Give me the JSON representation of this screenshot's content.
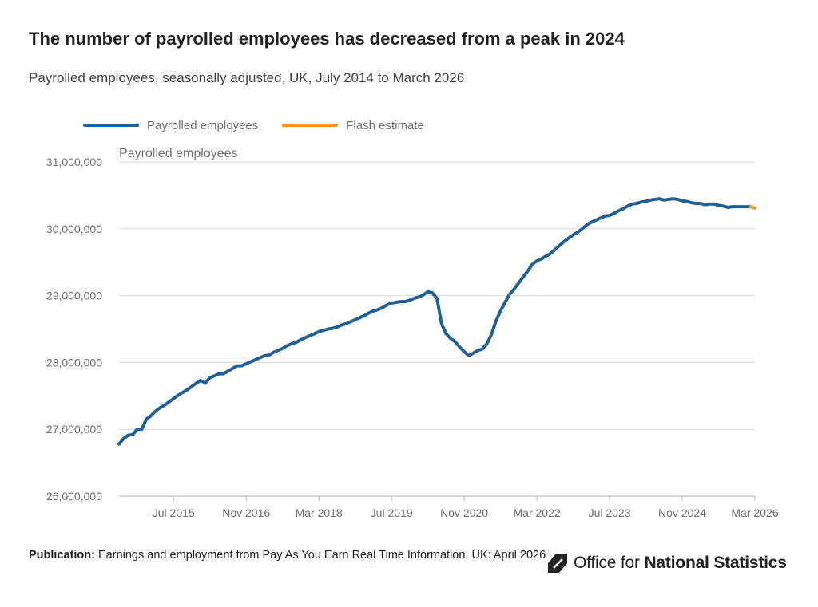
{
  "header": {
    "title": "The number of payrolled employees has decreased from a peak in 2024",
    "subtitle": "Payrolled employees, seasonally adjusted, UK, July 2014 to March 2026"
  },
  "legend": [
    {
      "label": "Payrolled employees",
      "color": "#206095"
    },
    {
      "label": "Flash estimate",
      "color": "#F39431"
    }
  ],
  "footer": {
    "publication_label": "Publication:",
    "publication_text": " Earnings and employment from Pay As You Earn Real Time Information, UK: April 2026"
  },
  "logo": {
    "text_light": "Office for ",
    "text_bold": "National Statistics"
  },
  "chart_data": {
    "type": "line",
    "ylabel": "Payrolled employees",
    "ylim": [
      26000000,
      31000000
    ],
    "yticks": [
      26000000,
      27000000,
      28000000,
      29000000,
      30000000,
      31000000
    ],
    "ytick_labels": [
      "26,000,000",
      "27,000,000",
      "28,000,000",
      "29,000,000",
      "30,000,000",
      "31,000,000"
    ],
    "x_start": "2014-07",
    "x_end": "2026-03",
    "xticks": [
      "2015-07",
      "2016-11",
      "2018-03",
      "2019-07",
      "2020-11",
      "2022-03",
      "2023-07",
      "2024-11",
      "2026-03"
    ],
    "xtick_labels": [
      "Jul 2015",
      "Nov 2016",
      "Mar 2018",
      "Jul 2019",
      "Nov 2020",
      "Mar 2022",
      "Jul 2023",
      "Nov 2024",
      "Mar 2026"
    ],
    "grid": true,
    "legend_position": "top-left",
    "series": [
      {
        "name": "Payrolled employees",
        "color": "#206095",
        "points": [
          [
            "2014-07",
            26780000
          ],
          [
            "2014-08",
            26860000
          ],
          [
            "2014-09",
            26910000
          ],
          [
            "2014-10",
            26920000
          ],
          [
            "2014-11",
            27000000
          ],
          [
            "2014-12",
            27000000
          ],
          [
            "2015-01",
            27150000
          ],
          [
            "2015-02",
            27200000
          ],
          [
            "2015-03",
            27270000
          ],
          [
            "2015-04",
            27320000
          ],
          [
            "2015-05",
            27360000
          ],
          [
            "2015-06",
            27410000
          ],
          [
            "2015-07",
            27460000
          ],
          [
            "2015-08",
            27510000
          ],
          [
            "2015-09",
            27550000
          ],
          [
            "2015-10",
            27590000
          ],
          [
            "2015-11",
            27640000
          ],
          [
            "2015-12",
            27690000
          ],
          [
            "2016-01",
            27730000
          ],
          [
            "2016-02",
            27690000
          ],
          [
            "2016-03",
            27770000
          ],
          [
            "2016-04",
            27800000
          ],
          [
            "2016-05",
            27830000
          ],
          [
            "2016-06",
            27830000
          ],
          [
            "2016-07",
            27870000
          ],
          [
            "2016-08",
            27910000
          ],
          [
            "2016-09",
            27950000
          ],
          [
            "2016-10",
            27950000
          ],
          [
            "2016-11",
            27980000
          ],
          [
            "2016-12",
            28010000
          ],
          [
            "2017-01",
            28040000
          ],
          [
            "2017-02",
            28070000
          ],
          [
            "2017-03",
            28100000
          ],
          [
            "2017-04",
            28110000
          ],
          [
            "2017-05",
            28150000
          ],
          [
            "2017-06",
            28180000
          ],
          [
            "2017-07",
            28210000
          ],
          [
            "2017-08",
            28250000
          ],
          [
            "2017-09",
            28280000
          ],
          [
            "2017-10",
            28300000
          ],
          [
            "2017-11",
            28340000
          ],
          [
            "2017-12",
            28370000
          ],
          [
            "2018-01",
            28400000
          ],
          [
            "2018-02",
            28430000
          ],
          [
            "2018-03",
            28460000
          ],
          [
            "2018-04",
            28480000
          ],
          [
            "2018-05",
            28500000
          ],
          [
            "2018-06",
            28510000
          ],
          [
            "2018-07",
            28530000
          ],
          [
            "2018-08",
            28560000
          ],
          [
            "2018-09",
            28580000
          ],
          [
            "2018-10",
            28610000
          ],
          [
            "2018-11",
            28640000
          ],
          [
            "2018-12",
            28670000
          ],
          [
            "2019-01",
            28700000
          ],
          [
            "2019-02",
            28740000
          ],
          [
            "2019-03",
            28770000
          ],
          [
            "2019-04",
            28790000
          ],
          [
            "2019-05",
            28820000
          ],
          [
            "2019-06",
            28860000
          ],
          [
            "2019-07",
            28890000
          ],
          [
            "2019-08",
            28900000
          ],
          [
            "2019-09",
            28910000
          ],
          [
            "2019-10",
            28910000
          ],
          [
            "2019-11",
            28930000
          ],
          [
            "2019-12",
            28960000
          ],
          [
            "2020-01",
            28980000
          ],
          [
            "2020-02",
            29010000
          ],
          [
            "2020-03",
            29060000
          ],
          [
            "2020-04",
            29040000
          ],
          [
            "2020-05",
            28960000
          ],
          [
            "2020-06",
            28580000
          ],
          [
            "2020-07",
            28430000
          ],
          [
            "2020-08",
            28360000
          ],
          [
            "2020-09",
            28310000
          ],
          [
            "2020-10",
            28230000
          ],
          [
            "2020-11",
            28160000
          ],
          [
            "2020-12",
            28100000
          ],
          [
            "2021-01",
            28140000
          ],
          [
            "2021-02",
            28180000
          ],
          [
            "2021-03",
            28200000
          ],
          [
            "2021-04",
            28280000
          ],
          [
            "2021-05",
            28420000
          ],
          [
            "2021-06",
            28620000
          ],
          [
            "2021-07",
            28770000
          ],
          [
            "2021-08",
            28900000
          ],
          [
            "2021-09",
            29020000
          ],
          [
            "2021-10",
            29100000
          ],
          [
            "2021-11",
            29190000
          ],
          [
            "2021-12",
            29280000
          ],
          [
            "2022-01",
            29370000
          ],
          [
            "2022-02",
            29470000
          ],
          [
            "2022-03",
            29520000
          ],
          [
            "2022-04",
            29550000
          ],
          [
            "2022-05",
            29590000
          ],
          [
            "2022-06",
            29630000
          ],
          [
            "2022-07",
            29690000
          ],
          [
            "2022-08",
            29750000
          ],
          [
            "2022-09",
            29810000
          ],
          [
            "2022-10",
            29860000
          ],
          [
            "2022-11",
            29910000
          ],
          [
            "2022-12",
            29950000
          ],
          [
            "2023-01",
            30000000
          ],
          [
            "2023-02",
            30060000
          ],
          [
            "2023-03",
            30100000
          ],
          [
            "2023-04",
            30130000
          ],
          [
            "2023-05",
            30160000
          ],
          [
            "2023-06",
            30190000
          ],
          [
            "2023-07",
            30200000
          ],
          [
            "2023-08",
            30230000
          ],
          [
            "2023-09",
            30270000
          ],
          [
            "2023-10",
            30300000
          ],
          [
            "2023-11",
            30340000
          ],
          [
            "2023-12",
            30370000
          ],
          [
            "2024-01",
            30380000
          ],
          [
            "2024-02",
            30400000
          ],
          [
            "2024-03",
            30410000
          ],
          [
            "2024-04",
            30430000
          ],
          [
            "2024-05",
            30440000
          ],
          [
            "2024-06",
            30450000
          ],
          [
            "2024-07",
            30430000
          ],
          [
            "2024-08",
            30440000
          ],
          [
            "2024-09",
            30450000
          ],
          [
            "2024-10",
            30440000
          ],
          [
            "2024-11",
            30420000
          ],
          [
            "2024-12",
            30410000
          ],
          [
            "2025-01",
            30390000
          ],
          [
            "2025-02",
            30380000
          ],
          [
            "2025-03",
            30380000
          ],
          [
            "2025-04",
            30360000
          ],
          [
            "2025-05",
            30370000
          ],
          [
            "2025-06",
            30370000
          ],
          [
            "2025-07",
            30350000
          ],
          [
            "2025-08",
            30340000
          ],
          [
            "2025-09",
            30320000
          ],
          [
            "2025-10",
            30330000
          ],
          [
            "2025-11",
            30330000
          ],
          [
            "2025-12",
            30330000
          ],
          [
            "2026-01",
            30330000
          ],
          [
            "2026-02",
            30330000
          ]
        ]
      },
      {
        "name": "Flash estimate",
        "color": "#F39431",
        "points": [
          [
            "2026-02",
            30330000
          ],
          [
            "2026-03",
            30310000
          ]
        ]
      }
    ]
  }
}
